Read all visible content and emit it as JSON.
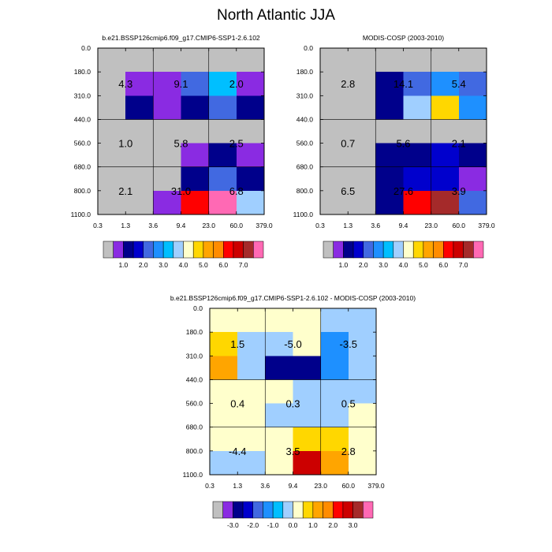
{
  "title": "North Atlantic JJA",
  "colors": {
    "palette": [
      "#c0c0c0",
      "#8a2be2",
      "#00008b",
      "#0000cd",
      "#4169e1",
      "#1e90ff",
      "#00bfff",
      "#a0cfff",
      "#ffffcc",
      "#ffd700",
      "#ffa500",
      "#ff8c00",
      "#ff0000",
      "#cc0000",
      "#a52a2a",
      "#ff69b4"
    ],
    "grid": "#000000"
  },
  "chart_data": [
    {
      "type": "heatmap",
      "title": "b.e21.BSSP126cmip6.f09_g17.CMIP6-SSP1-2.6.102",
      "x_tick_labels": [
        "0.3",
        "1.3",
        "3.6",
        "9.4",
        "23.0",
        "60.0",
        "379.0"
      ],
      "y_tick_labels": [
        "0.0",
        "180.0",
        "310.0",
        "440.0",
        "560.0",
        "680.0",
        "800.0",
        "1100.0"
      ],
      "cells": [
        [
          0,
          0,
          0,
          0,
          0,
          0
        ],
        [
          0,
          1,
          1,
          4,
          6,
          1
        ],
        [
          0,
          2,
          1,
          2,
          4,
          2
        ],
        [
          0,
          0,
          0,
          0,
          0,
          0
        ],
        [
          0,
          0,
          0,
          1,
          2,
          1
        ],
        [
          0,
          0,
          0,
          2,
          4,
          2
        ],
        [
          0,
          0,
          1,
          12,
          15,
          7
        ],
        [
          0,
          0,
          2,
          12,
          15,
          5
        ]
      ],
      "annotations": [
        {
          "col_group": 0,
          "row_group": 0,
          "text": "4.3"
        },
        {
          "col_group": 1,
          "row_group": 0,
          "text": "9.1"
        },
        {
          "col_group": 2,
          "row_group": 0,
          "text": "2.0"
        },
        {
          "col_group": 0,
          "row_group": 1,
          "text": "1.0"
        },
        {
          "col_group": 1,
          "row_group": 1,
          "text": "5.8"
        },
        {
          "col_group": 2,
          "row_group": 1,
          "text": "2.5"
        },
        {
          "col_group": 0,
          "row_group": 2,
          "text": "2.1"
        },
        {
          "col_group": 1,
          "row_group": 2,
          "text": "31.0"
        },
        {
          "col_group": 2,
          "row_group": 2,
          "text": "6.8"
        }
      ],
      "legend": {
        "labels": [
          "1.0",
          "2.0",
          "3.0",
          "4.0",
          "5.0",
          "6.0",
          "7.0"
        ],
        "colors": [
          0,
          1,
          2,
          3,
          4,
          5,
          6,
          7,
          8,
          9,
          10,
          11,
          12,
          13,
          14,
          15
        ]
      }
    },
    {
      "type": "heatmap",
      "title": "MODIS-COSP (2003-2010)",
      "x_tick_labels": [
        "0.3",
        "1.3",
        "3.6",
        "9.4",
        "23.0",
        "60.0",
        "379.0"
      ],
      "y_tick_labels": [
        "0.0",
        "180.0",
        "310.0",
        "440.0",
        "560.0",
        "680.0",
        "800.0",
        "1100.0"
      ],
      "cells": [
        [
          0,
          0,
          0,
          0,
          0,
          0
        ],
        [
          0,
          0,
          2,
          4,
          5,
          4
        ],
        [
          0,
          0,
          2,
          7,
          9,
          5
        ],
        [
          0,
          0,
          0,
          0,
          0,
          0
        ],
        [
          0,
          0,
          2,
          2,
          3,
          2
        ],
        [
          0,
          0,
          2,
          3,
          3,
          1
        ],
        [
          0,
          0,
          2,
          12,
          14,
          4
        ],
        [
          0,
          1,
          8,
          15,
          12,
          2
        ]
      ],
      "annotations": [
        {
          "col_group": 0,
          "row_group": 0,
          "text": "2.8"
        },
        {
          "col_group": 1,
          "row_group": 0,
          "text": "14.1"
        },
        {
          "col_group": 2,
          "row_group": 0,
          "text": "5.4"
        },
        {
          "col_group": 0,
          "row_group": 1,
          "text": "0.7"
        },
        {
          "col_group": 1,
          "row_group": 1,
          "text": "5.6"
        },
        {
          "col_group": 2,
          "row_group": 1,
          "text": "2.1"
        },
        {
          "col_group": 0,
          "row_group": 2,
          "text": "6.5"
        },
        {
          "col_group": 1,
          "row_group": 2,
          "text": "27.6"
        },
        {
          "col_group": 2,
          "row_group": 2,
          "text": "3.9"
        }
      ],
      "legend": {
        "labels": [
          "1.0",
          "2.0",
          "3.0",
          "4.0",
          "5.0",
          "6.0",
          "7.0"
        ],
        "colors": [
          0,
          1,
          2,
          3,
          4,
          5,
          6,
          7,
          8,
          9,
          10,
          11,
          12,
          13,
          14,
          15
        ]
      }
    },
    {
      "type": "heatmap",
      "title": "b.e21.BSSP126cmip6.f09_g17.CMIP6-SSP1-2.6.102 - MODIS-COSP (2003-2010)",
      "x_tick_labels": [
        "0.3",
        "1.3",
        "3.6",
        "9.4",
        "23.0",
        "60.0",
        "379.0"
      ],
      "y_tick_labels": [
        "0.0",
        "180.0",
        "310.0",
        "440.0",
        "560.0",
        "680.0",
        "800.0",
        "1100.0"
      ],
      "cells": [
        [
          8,
          8,
          8,
          8,
          7,
          7
        ],
        [
          9,
          7,
          7,
          8,
          5,
          7
        ],
        [
          10,
          7,
          2,
          2,
          5,
          7
        ],
        [
          8,
          8,
          8,
          7,
          7,
          7
        ],
        [
          8,
          8,
          7,
          7,
          7,
          8
        ],
        [
          8,
          8,
          8,
          9,
          9,
          8
        ],
        [
          7,
          7,
          8,
          13,
          10,
          8
        ],
        [
          6,
          1,
          4,
          13,
          10,
          8
        ]
      ],
      "annotations": [
        {
          "col_group": 0,
          "row_group": 0,
          "text": "1.5"
        },
        {
          "col_group": 1,
          "row_group": 0,
          "text": "-5.0"
        },
        {
          "col_group": 2,
          "row_group": 0,
          "text": "-3.5"
        },
        {
          "col_group": 0,
          "row_group": 1,
          "text": "0.4"
        },
        {
          "col_group": 1,
          "row_group": 1,
          "text": "0.3"
        },
        {
          "col_group": 2,
          "row_group": 1,
          "text": "0.5"
        },
        {
          "col_group": 0,
          "row_group": 2,
          "text": "-4.4"
        },
        {
          "col_group": 1,
          "row_group": 2,
          "text": "3.5"
        },
        {
          "col_group": 2,
          "row_group": 2,
          "text": "2.8"
        }
      ],
      "legend": {
        "labels": [
          "-3.0",
          "-2.0",
          "-1.0",
          "0.0",
          "1.0",
          "2.0",
          "3.0"
        ],
        "colors": [
          0,
          1,
          2,
          3,
          4,
          5,
          6,
          7,
          8,
          9,
          10,
          11,
          12,
          13,
          14,
          15
        ]
      }
    }
  ]
}
